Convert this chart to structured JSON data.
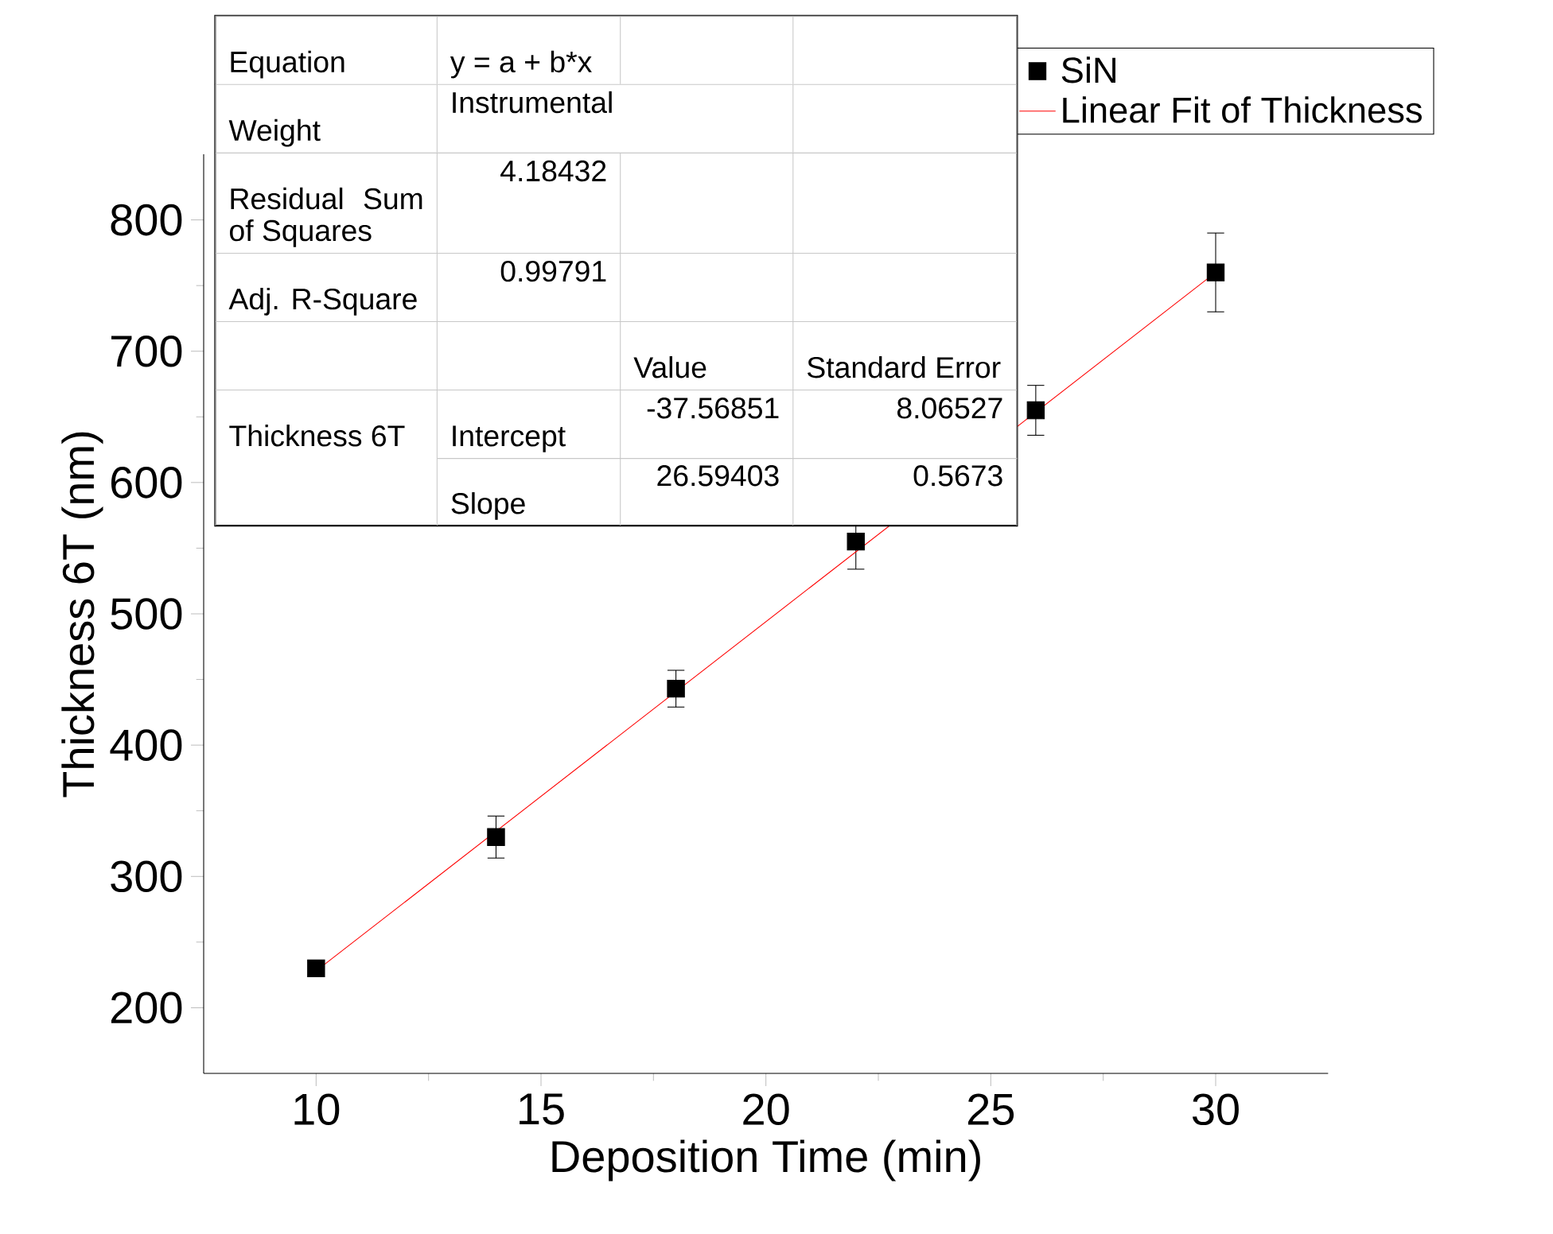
{
  "chart_data": {
    "type": "scatter",
    "xlabel": "Deposition Time (min)",
    "ylabel": "Thickness 6T (nm)",
    "xlim": [
      7.5,
      32.5
    ],
    "ylim": [
      150,
      850
    ],
    "xticks": [
      10,
      15,
      20,
      25,
      30
    ],
    "yticks": [
      200,
      300,
      400,
      500,
      600,
      700,
      800
    ],
    "legend": "top right",
    "grid": false,
    "annotations": [
      "Equation",
      "y = a + b*x",
      "Weight",
      "Instrumental",
      "Residual Sum of Squares",
      "4.18432",
      "Adj. R-Square",
      "0.99791",
      "Value",
      "Standard Error",
      "Thickness 6T",
      "Intercept",
      "-37.56851",
      "8.06527",
      "Slope",
      "26.59403",
      "0.5673"
    ],
    "series": [
      {
        "name": "SiN",
        "color": "#000000",
        "marker": "square",
        "x": [
          10,
          14,
          18,
          22,
          26,
          30
        ],
        "values": [
          230,
          330,
          443,
          555,
          655,
          760
        ],
        "errors": [
          5,
          16,
          14,
          21,
          19,
          30
        ]
      },
      {
        "name": "Linear Fit of Thickness",
        "type": "line",
        "marker": "none",
        "color": "#ff0000",
        "x": [
          10,
          30
        ],
        "values": [
          228,
          760
        ]
      }
    ]
  }
}
